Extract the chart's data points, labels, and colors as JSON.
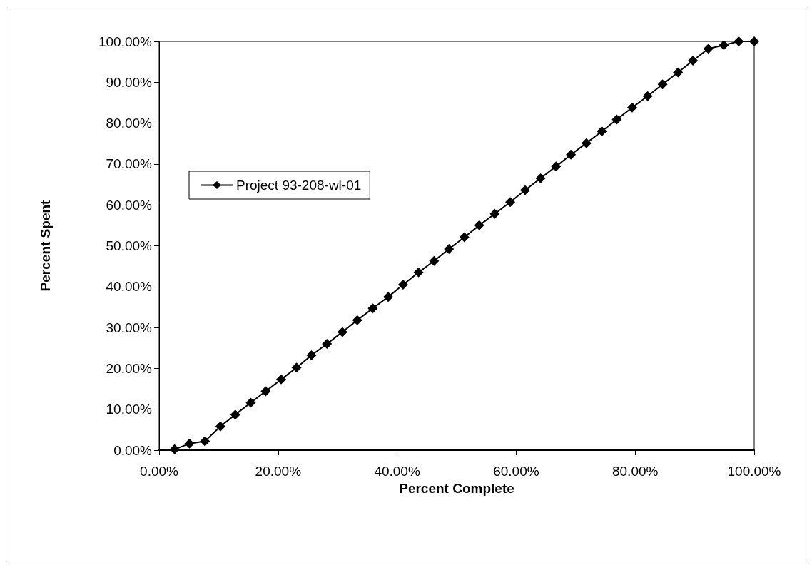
{
  "chart_data": {
    "type": "line",
    "xlabel": "Percent Complete",
    "ylabel": "Percent Spent",
    "series": [
      {
        "name": "Project 93-208-wl-01",
        "color": "#000000",
        "x": [
          2.6,
          5.1,
          7.7,
          10.3,
          12.8,
          15.4,
          17.9,
          20.5,
          23.1,
          25.6,
          28.2,
          30.8,
          33.3,
          35.9,
          38.5,
          41.0,
          43.6,
          46.2,
          48.7,
          51.3,
          53.8,
          56.4,
          59.0,
          61.5,
          64.1,
          66.7,
          69.2,
          71.8,
          74.4,
          76.9,
          79.5,
          82.1,
          84.6,
          87.2,
          89.7,
          92.3,
          94.9,
          97.4,
          100
        ],
        "values": [
          0.2,
          1.6,
          2.2,
          5.8,
          8.7,
          11.6,
          14.4,
          17.3,
          20.2,
          23.2,
          26.0,
          28.9,
          31.8,
          34.7,
          37.5,
          40.5,
          43.5,
          46.3,
          49.2,
          52.1,
          55.0,
          57.8,
          60.7,
          63.6,
          66.5,
          69.4,
          72.3,
          75.1,
          78.0,
          80.9,
          83.8,
          86.6,
          89.5,
          92.4,
          95.3,
          98.2,
          99.1,
          100,
          100
        ]
      }
    ],
    "xlim": [
      0,
      100
    ],
    "xticks": [
      {
        "value": 0,
        "label": "0.00%"
      },
      {
        "value": 20,
        "label": "20.00%"
      },
      {
        "value": 40,
        "label": "40.00%"
      },
      {
        "value": 60,
        "label": "60.00%"
      },
      {
        "value": 80,
        "label": "80.00%"
      },
      {
        "value": 100,
        "label": "100.00%"
      }
    ],
    "ylim": [
      0,
      100
    ],
    "yticks": [
      {
        "value": 0,
        "label": "0.00%"
      },
      {
        "value": 10,
        "label": "10.00%"
      },
      {
        "value": 20,
        "label": "20.00%"
      },
      {
        "value": 30,
        "label": "30.00%"
      },
      {
        "value": 40,
        "label": "40.00%"
      },
      {
        "value": 50,
        "label": "50.00%"
      },
      {
        "value": 60,
        "label": "60.00%"
      },
      {
        "value": 70,
        "label": "70.00%"
      },
      {
        "value": 80,
        "label": "80.00%"
      },
      {
        "value": 90,
        "label": "90.00%"
      },
      {
        "value": 100,
        "label": "100.00%"
      }
    ],
    "grid": false,
    "legend": "left",
    "marker": "diamond",
    "line_style": "solid"
  }
}
